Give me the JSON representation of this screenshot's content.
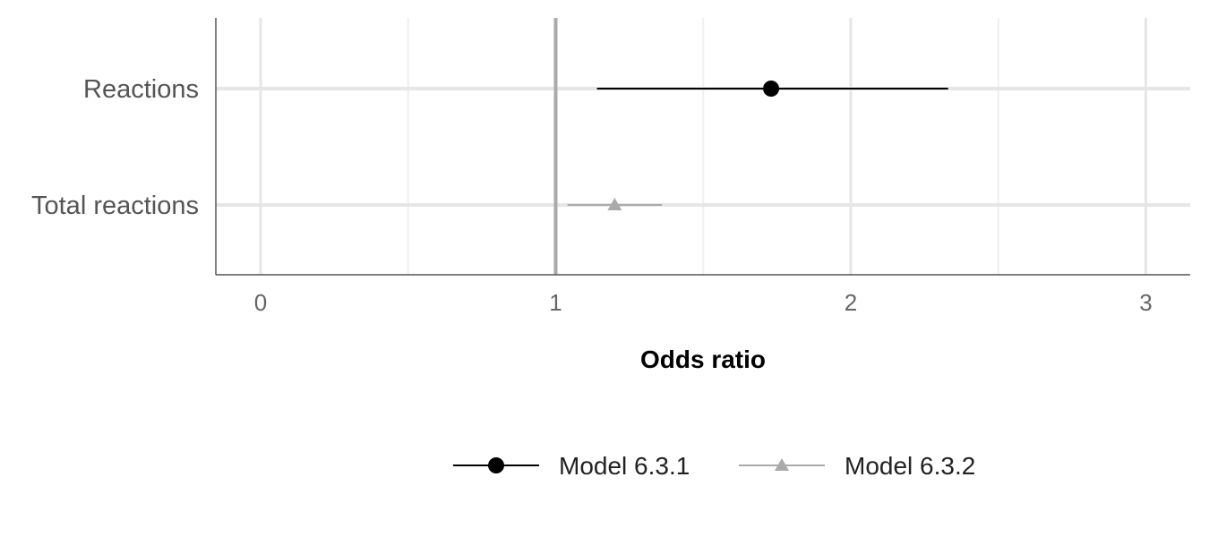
{
  "chart_data": {
    "type": "scatter",
    "title": "",
    "xlabel": "Odds ratio",
    "ylabel": "",
    "xlim": [
      -0.15,
      3.15
    ],
    "xticks": [
      "0",
      "1",
      "2",
      "3"
    ],
    "categories": [
      "Reactions",
      "Total reactions"
    ],
    "reference_line": 1,
    "grid": true,
    "legend_position": "bottom",
    "series": [
      {
        "name": "Model 6.3.1",
        "color": "#000000",
        "marker": "circle",
        "category": "Reactions",
        "estimate": 1.73,
        "ci_low": 1.14,
        "ci_high": 2.33
      },
      {
        "name": "Model 6.3.2",
        "color": "#aaaaaa",
        "marker": "triangle",
        "category": "Total reactions",
        "estimate": 1.2,
        "ci_low": 1.04,
        "ci_high": 1.36
      }
    ]
  }
}
